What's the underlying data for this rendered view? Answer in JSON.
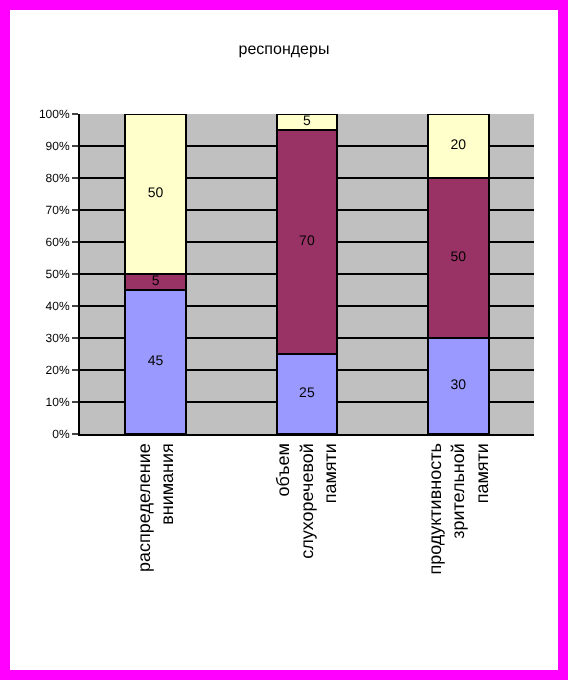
{
  "chart_data": {
    "type": "bar",
    "title": "респондеры",
    "stacked": true,
    "data_labels": true,
    "categories": [
      "распределение внимания",
      "объем слухоречевой памяти",
      "продуктивность зрительной памяти"
    ],
    "series": [
      {
        "color": "#9999ff",
        "values": [
          45,
          25,
          30
        ]
      },
      {
        "color": "#993366",
        "values": [
          5,
          70,
          50
        ]
      },
      {
        "color": "#ffffcc",
        "values": [
          50,
          5,
          20
        ]
      }
    ],
    "ylim": [
      0,
      100
    ],
    "yticks": [
      {
        "value": 0,
        "label": "0%"
      },
      {
        "value": 10,
        "label": "10%"
      },
      {
        "value": 20,
        "label": "20%"
      },
      {
        "value": 30,
        "label": "30%"
      },
      {
        "value": 40,
        "label": "40%"
      },
      {
        "value": 50,
        "label": "50%"
      },
      {
        "value": 60,
        "label": "60%"
      },
      {
        "value": 70,
        "label": "70%"
      },
      {
        "value": 80,
        "label": "80%"
      },
      {
        "value": 90,
        "label": "90%"
      },
      {
        "value": 100,
        "label": "100%"
      }
    ],
    "grid": "y"
  }
}
